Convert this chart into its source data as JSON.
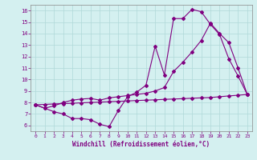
{
  "line1_x": [
    0,
    1,
    2,
    3,
    4,
    5,
    6,
    7,
    8,
    9,
    10,
    11,
    12,
    13,
    14,
    15,
    16,
    17,
    18,
    19,
    20,
    21,
    22,
    23
  ],
  "line1_y": [
    7.8,
    7.5,
    7.2,
    7.0,
    6.6,
    6.6,
    6.5,
    6.1,
    5.9,
    7.3,
    8.5,
    8.9,
    9.5,
    12.9,
    10.4,
    15.3,
    15.3,
    16.1,
    15.9,
    14.8,
    13.9,
    11.8,
    10.3,
    8.7
  ],
  "line2_x": [
    0,
    1,
    2,
    3,
    4,
    5,
    6,
    7,
    8,
    9,
    10,
    11,
    12,
    13,
    14,
    15,
    16,
    17,
    18,
    19,
    20,
    21,
    22,
    23
  ],
  "line2_y": [
    7.8,
    7.5,
    7.7,
    8.0,
    8.2,
    8.3,
    8.35,
    8.2,
    8.4,
    8.5,
    8.6,
    8.7,
    8.8,
    9.0,
    9.3,
    10.7,
    11.5,
    12.4,
    13.4,
    14.9,
    14.0,
    13.2,
    11.0,
    8.7
  ],
  "line3_x": [
    0,
    1,
    2,
    3,
    4,
    5,
    6,
    7,
    8,
    9,
    10,
    11,
    12,
    13,
    14,
    15,
    16,
    17,
    18,
    19,
    20,
    21,
    22,
    23
  ],
  "line3_y": [
    7.8,
    7.83,
    7.87,
    7.9,
    7.93,
    7.97,
    8.0,
    8.03,
    8.07,
    8.1,
    8.13,
    8.17,
    8.2,
    8.23,
    8.27,
    8.3,
    8.33,
    8.37,
    8.4,
    8.43,
    8.5,
    8.57,
    8.63,
    8.7
  ],
  "color": "#800080",
  "marker": "D",
  "markersize": 2.0,
  "linewidth": 0.8,
  "bg_color": "#d4f0f0",
  "grid_color": "#b0d8d8",
  "xlabel": "Windchill (Refroidissement éolien,°C)",
  "ylim": [
    5.5,
    16.5
  ],
  "xlim": [
    -0.5,
    23.5
  ],
  "yticks": [
    6,
    7,
    8,
    9,
    10,
    11,
    12,
    13,
    14,
    15,
    16
  ],
  "xticks": [
    0,
    1,
    2,
    3,
    4,
    5,
    6,
    7,
    8,
    9,
    10,
    11,
    12,
    13,
    14,
    15,
    16,
    17,
    18,
    19,
    20,
    21,
    22,
    23
  ]
}
